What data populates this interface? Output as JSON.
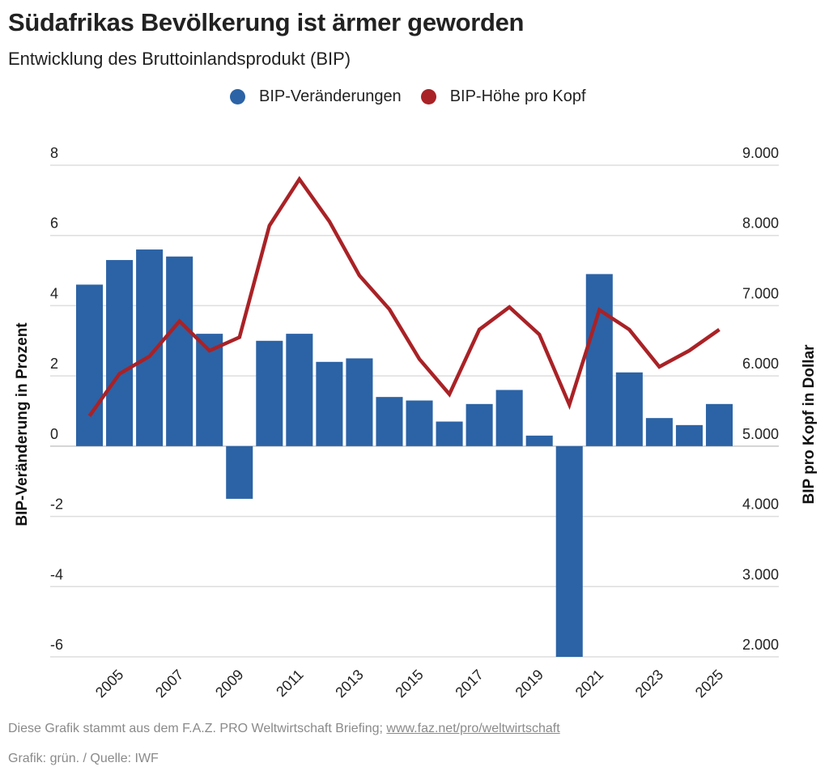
{
  "header": {
    "title": "Südafrikas Bevölkerung ist ärmer geworden",
    "subtitle": "Entwicklung des Bruttoinlandsprodukt (BIP)"
  },
  "legend": [
    {
      "label": "BIP-Veränderungen",
      "color": "#2b63a6"
    },
    {
      "label": "BIP-Höhe pro Kopf",
      "color": "#a92226"
    }
  ],
  "footer": {
    "source_prefix": "Diese Grafik stammt aus dem F.A.Z. PRO Weltwirtschaft Briefing; ",
    "source_link": "www.faz.net/pro/weltwirtschaft",
    "credits": "Grafik: grün. / Quelle: IWF"
  },
  "chart_data": {
    "type": "bar+line",
    "title": "Südafrikas Bevölkerung ist ärmer geworden",
    "subtitle": "Entwicklung des Bruttoinlandsprodukt (BIP)",
    "categories": [
      "2004",
      "2005",
      "2006",
      "2007",
      "2008",
      "2009",
      "2010",
      "2011",
      "2012",
      "2013",
      "2014",
      "2015",
      "2016",
      "2017",
      "2018",
      "2019",
      "2020",
      "2021",
      "2022",
      "2023",
      "2024",
      "2025"
    ],
    "x_tick_labels": [
      "2005",
      "2007",
      "2009",
      "2011",
      "2013",
      "2015",
      "2017",
      "2019",
      "2021",
      "2023",
      "2025"
    ],
    "series": [
      {
        "name": "BIP-Veränderungen",
        "type": "bar",
        "axis": "left",
        "color": "#2b63a6",
        "values": [
          4.6,
          5.3,
          5.6,
          5.4,
          3.2,
          -1.5,
          3.0,
          3.2,
          2.4,
          2.5,
          1.4,
          1.3,
          0.7,
          1.2,
          1.6,
          0.3,
          -6.0,
          4.9,
          2.1,
          0.8,
          0.6,
          1.2
        ]
      },
      {
        "name": "BIP-Höhe pro Kopf",
        "type": "line",
        "axis": "right",
        "color": "#a92226",
        "values": [
          5430,
          6030,
          6280,
          6780,
          6360,
          6550,
          8140,
          8800,
          8200,
          7430,
          6950,
          6240,
          5740,
          6660,
          6980,
          6590,
          5590,
          6940,
          6660,
          6130,
          6360,
          6660
        ]
      }
    ],
    "y_left": {
      "label": "BIP-Veränderung in Prozent",
      "range": [
        -6,
        8
      ],
      "ticks": [
        8,
        6,
        4,
        2,
        0,
        -2,
        -4,
        -6
      ],
      "tick_labels": [
        "8",
        "6",
        "4",
        "2",
        "0",
        "-2",
        "-4",
        "-6"
      ]
    },
    "y_right": {
      "label": "BIP pro Kopf in Dollar",
      "range": [
        2000,
        9000
      ],
      "ticks": [
        9000,
        8000,
        7000,
        6000,
        5000,
        4000,
        3000,
        2000
      ],
      "tick_labels": [
        "9.000",
        "8.000",
        "7.000",
        "6.000",
        "5.000",
        "4.000",
        "3.000",
        "2.000"
      ]
    },
    "grid": true,
    "legend_position": "top-center"
  }
}
